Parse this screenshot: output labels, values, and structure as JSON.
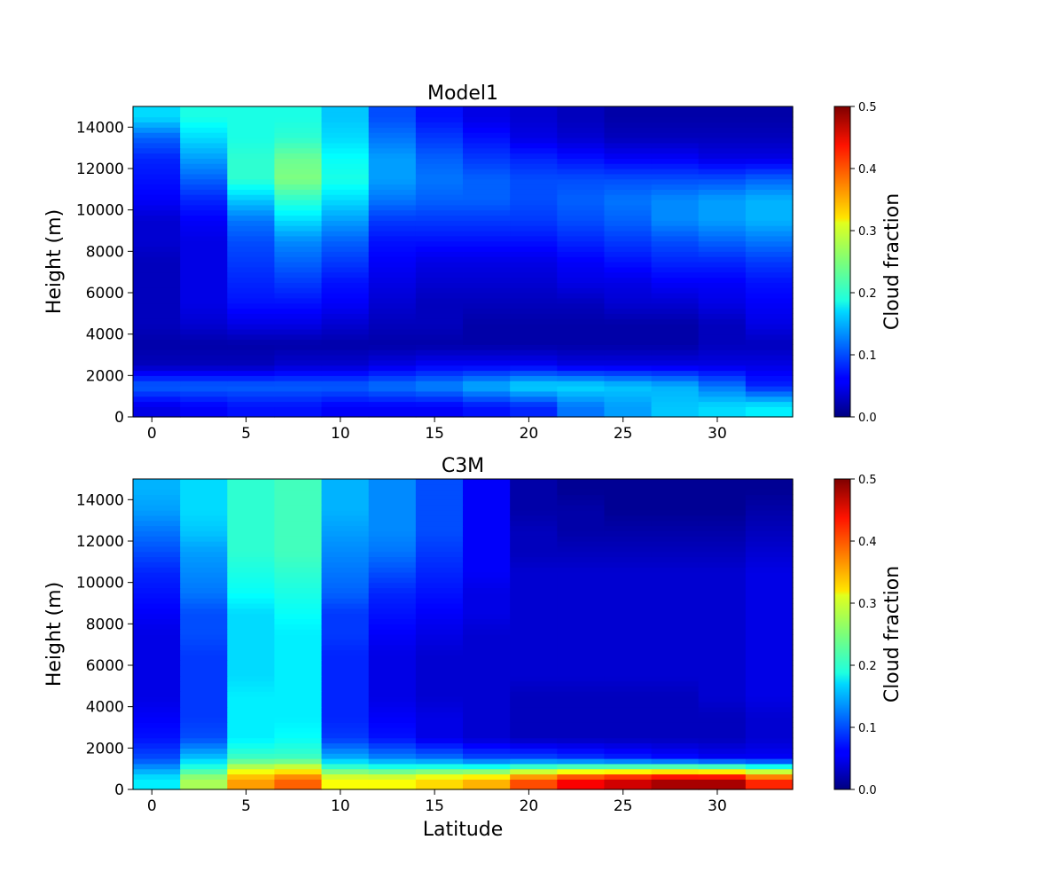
{
  "chart_data": [
    {
      "type": "heatmap",
      "title": "Model1",
      "xlabel": "",
      "ylabel": "Height (m)",
      "xlim": [
        -1,
        34
      ],
      "ylim": [
        0,
        15000
      ],
      "x_ticks": [
        0,
        5,
        10,
        15,
        20,
        25,
        30
      ],
      "y_ticks": [
        0,
        2000,
        4000,
        6000,
        8000,
        10000,
        12000,
        14000
      ],
      "lat_edges": [
        -1,
        1.5,
        4,
        6.5,
        9,
        11.5,
        14,
        16.5,
        19,
        21.5,
        24,
        26.5,
        29,
        31.5,
        34
      ],
      "height_levels": [
        0,
        1000,
        2000,
        3000,
        4000,
        5000,
        6000,
        7000,
        8000,
        9000,
        10000,
        11000,
        12000,
        13000,
        14000,
        15000
      ],
      "values": [
        [
          0.05,
          0.06,
          0.07,
          0.07,
          0.06,
          0.06,
          0.06,
          0.07,
          0.08,
          0.12,
          0.14,
          0.16,
          0.17,
          0.18
        ],
        [
          0.11,
          0.11,
          0.11,
          0.11,
          0.11,
          0.12,
          0.13,
          0.15,
          0.17,
          0.17,
          0.16,
          0.15,
          0.12,
          0.08
        ],
        [
          0.03,
          0.03,
          0.03,
          0.04,
          0.04,
          0.05,
          0.06,
          0.06,
          0.06,
          0.05,
          0.05,
          0.05,
          0.05,
          0.05
        ],
        [
          0.02,
          0.02,
          0.02,
          0.02,
          0.02,
          0.02,
          0.02,
          0.02,
          0.02,
          0.02,
          0.02,
          0.02,
          0.03,
          0.03
        ],
        [
          0.03,
          0.04,
          0.05,
          0.05,
          0.04,
          0.03,
          0.03,
          0.02,
          0.02,
          0.02,
          0.02,
          0.02,
          0.03,
          0.05
        ],
        [
          0.03,
          0.05,
          0.07,
          0.07,
          0.06,
          0.04,
          0.03,
          0.03,
          0.03,
          0.03,
          0.04,
          0.04,
          0.05,
          0.06
        ],
        [
          0.03,
          0.05,
          0.08,
          0.09,
          0.07,
          0.05,
          0.04,
          0.04,
          0.04,
          0.05,
          0.05,
          0.06,
          0.06,
          0.07
        ],
        [
          0.03,
          0.05,
          0.09,
          0.11,
          0.09,
          0.06,
          0.05,
          0.05,
          0.05,
          0.06,
          0.07,
          0.08,
          0.08,
          0.09
        ],
        [
          0.04,
          0.05,
          0.1,
          0.13,
          0.11,
          0.07,
          0.07,
          0.07,
          0.07,
          0.08,
          0.09,
          0.1,
          0.11,
          0.12
        ],
        [
          0.04,
          0.06,
          0.12,
          0.17,
          0.14,
          0.09,
          0.09,
          0.09,
          0.09,
          0.1,
          0.11,
          0.13,
          0.14,
          0.15
        ],
        [
          0.06,
          0.08,
          0.16,
          0.21,
          0.17,
          0.12,
          0.11,
          0.11,
          0.1,
          0.11,
          0.12,
          0.13,
          0.14,
          0.15
        ],
        [
          0.07,
          0.11,
          0.21,
          0.25,
          0.2,
          0.14,
          0.12,
          0.11,
          0.1,
          0.1,
          0.1,
          0.1,
          0.1,
          0.11
        ],
        [
          0.08,
          0.14,
          0.21,
          0.24,
          0.19,
          0.14,
          0.11,
          0.09,
          0.08,
          0.07,
          0.06,
          0.06,
          0.05,
          0.05
        ],
        [
          0.11,
          0.17,
          0.2,
          0.21,
          0.17,
          0.12,
          0.09,
          0.07,
          0.05,
          0.04,
          0.03,
          0.03,
          0.03,
          0.03
        ],
        [
          0.17,
          0.2,
          0.2,
          0.2,
          0.16,
          0.1,
          0.07,
          0.05,
          0.04,
          0.03,
          0.02,
          0.02,
          0.02,
          0.02
        ]
      ]
    },
    {
      "type": "heatmap",
      "title": "C3M",
      "xlabel": "Latitude",
      "ylabel": "Height (m)",
      "xlim": [
        -1,
        34
      ],
      "ylim": [
        0,
        15000
      ],
      "x_ticks": [
        0,
        5,
        10,
        15,
        20,
        25,
        30
      ],
      "y_ticks": [
        0,
        2000,
        4000,
        6000,
        8000,
        10000,
        12000,
        14000
      ],
      "lat_edges": [
        -1,
        1.5,
        4,
        6.5,
        9,
        11.5,
        14,
        16.5,
        19,
        21.5,
        24,
        26.5,
        29,
        31.5,
        34
      ],
      "height_levels": [
        0,
        1000,
        2000,
        3000,
        4000,
        5000,
        6000,
        7000,
        8000,
        9000,
        10000,
        11000,
        12000,
        13000,
        14000,
        15000
      ],
      "values": [
        [
          0.18,
          0.27,
          0.36,
          0.39,
          0.31,
          0.31,
          0.33,
          0.35,
          0.4,
          0.44,
          0.46,
          0.48,
          0.48,
          0.42
        ],
        [
          0.1,
          0.16,
          0.22,
          0.22,
          0.15,
          0.13,
          0.12,
          0.1,
          0.1,
          0.09,
          0.08,
          0.07,
          0.06,
          0.06
        ],
        [
          0.07,
          0.1,
          0.18,
          0.19,
          0.09,
          0.07,
          0.05,
          0.04,
          0.03,
          0.03,
          0.03,
          0.03,
          0.03,
          0.04
        ],
        [
          0.06,
          0.09,
          0.18,
          0.18,
          0.08,
          0.06,
          0.05,
          0.04,
          0.03,
          0.03,
          0.03,
          0.03,
          0.03,
          0.04
        ],
        [
          0.05,
          0.09,
          0.18,
          0.18,
          0.08,
          0.05,
          0.04,
          0.04,
          0.03,
          0.03,
          0.03,
          0.03,
          0.04,
          0.05
        ],
        [
          0.05,
          0.09,
          0.17,
          0.18,
          0.08,
          0.05,
          0.04,
          0.04,
          0.04,
          0.04,
          0.04,
          0.04,
          0.04,
          0.05
        ],
        [
          0.05,
          0.09,
          0.17,
          0.18,
          0.08,
          0.05,
          0.04,
          0.04,
          0.04,
          0.04,
          0.04,
          0.04,
          0.04,
          0.05
        ],
        [
          0.05,
          0.1,
          0.17,
          0.18,
          0.09,
          0.06,
          0.05,
          0.04,
          0.04,
          0.04,
          0.04,
          0.04,
          0.04,
          0.05
        ],
        [
          0.06,
          0.1,
          0.17,
          0.19,
          0.09,
          0.07,
          0.06,
          0.05,
          0.04,
          0.04,
          0.04,
          0.04,
          0.04,
          0.05
        ],
        [
          0.07,
          0.12,
          0.19,
          0.2,
          0.11,
          0.08,
          0.07,
          0.05,
          0.04,
          0.04,
          0.04,
          0.04,
          0.04,
          0.05
        ],
        [
          0.08,
          0.13,
          0.2,
          0.21,
          0.12,
          0.1,
          0.08,
          0.06,
          0.04,
          0.04,
          0.04,
          0.04,
          0.04,
          0.05
        ],
        [
          0.1,
          0.14,
          0.21,
          0.22,
          0.13,
          0.12,
          0.09,
          0.06,
          0.03,
          0.03,
          0.03,
          0.03,
          0.03,
          0.04
        ],
        [
          0.12,
          0.16,
          0.21,
          0.22,
          0.14,
          0.13,
          0.1,
          0.06,
          0.03,
          0.02,
          0.02,
          0.02,
          0.02,
          0.03
        ],
        [
          0.14,
          0.17,
          0.21,
          0.22,
          0.15,
          0.13,
          0.1,
          0.06,
          0.02,
          0.02,
          0.01,
          0.01,
          0.01,
          0.02
        ],
        [
          0.15,
          0.17,
          0.21,
          0.22,
          0.15,
          0.13,
          0.1,
          0.06,
          0.02,
          0.01,
          0.01,
          0.01,
          0.01,
          0.01
        ]
      ]
    }
  ],
  "colorbar": {
    "label": "Cloud fraction",
    "range": [
      0,
      0.5
    ],
    "ticks": [
      "0.0",
      "0.1",
      "0.2",
      "0.3",
      "0.4",
      "0.5"
    ],
    "colormap": "jet"
  }
}
